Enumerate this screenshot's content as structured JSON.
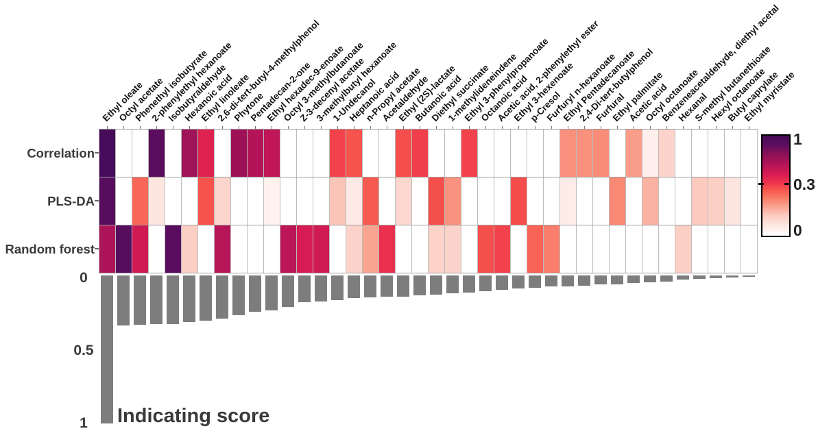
{
  "chart_data": {
    "type": "heatmap",
    "categories": [
      "Ethyl oleate",
      "Octyl acetate",
      "Phenethyl isobutyrate",
      "2-phenylethyl hexanoate",
      "Isobutyraldehyde",
      "Hexanoic acid",
      "Ethyl linoleate",
      "2,6-di-tert-butyl-4-methylphenol",
      "Phytone",
      "Pentadecan-2-one",
      "Ethyl hexadec-9-enoate",
      "Octyl 3-methylbutanoate",
      "Z-3-decenyl acetate",
      "3-methylbutyl hexanoate",
      "1-Undecanol",
      "Heptanoic acid",
      "n-Propyl acetate",
      "Acetaldehyde",
      "Ethyl (2S)-lactate",
      "Butanoic acid",
      "Diethyl succinate",
      "1-methylideneindene",
      "Ethyl 3-phenylpropanoate",
      "Octanoic acid",
      "Acetic acid, 2-phenylethyl ester",
      "Ethyl 3-hexenoate",
      "p-Cresol",
      "Furfuryl n-hexanoate",
      "Ethyl Pentadecanoate",
      "2,4-Di-tert-butylphenol",
      "Furfural",
      "Ethyl palmitate",
      "Acetic acid",
      "Octyl octanoate",
      "Benzeneacetaldehyde, diethyl acetal",
      "Hexanal",
      "S-methyl butanethioate",
      "Hexyl octanoate",
      "Butyl caprylate",
      "Ethyl myristate"
    ],
    "heatmap": {
      "rows": [
        "Correlation",
        "PLS-DA",
        "Random forest"
      ],
      "values": [
        [
          0.98,
          0,
          0,
          0.87,
          0,
          0.63,
          0.4,
          0,
          0.64,
          0.56,
          0.52,
          0,
          0,
          0,
          0.3,
          0.27,
          0,
          0,
          0.28,
          0.31,
          0,
          0,
          0.3,
          0,
          0,
          0,
          0,
          0,
          0.15,
          0.15,
          0.155,
          0,
          0.13,
          0.01,
          0.047,
          0,
          0,
          0,
          0,
          0
        ],
        [
          0.89,
          0,
          0.224,
          0.022,
          0,
          0,
          0.27,
          0.045,
          0,
          0,
          0.008,
          0,
          0,
          0,
          0.073,
          0.016,
          0.253,
          0,
          0.042,
          0,
          0.277,
          0.148,
          0,
          0,
          0,
          0.283,
          0,
          0,
          0.013,
          0,
          0,
          0.164,
          0,
          0.098,
          0,
          0,
          0.065,
          0.057,
          0.022,
          0
        ],
        [
          0.58,
          0.9,
          0.457,
          0,
          0.88,
          0.057,
          0,
          0.548,
          0,
          0,
          0,
          0.53,
          0.433,
          0.457,
          0,
          0.05,
          0.12,
          0.345,
          0,
          0,
          0.052,
          0.05,
          0,
          0.277,
          0.3,
          0,
          0.234,
          0.18,
          0,
          0,
          0,
          0,
          0,
          0,
          0,
          0.057,
          0,
          0,
          0,
          0
        ]
      ]
    },
    "bar": {
      "label": "Indicating score",
      "values": [
        1.0,
        0.34,
        0.335,
        0.33,
        0.33,
        0.315,
        0.305,
        0.29,
        0.27,
        0.245,
        0.235,
        0.215,
        0.18,
        0.175,
        0.165,
        0.152,
        0.147,
        0.142,
        0.142,
        0.135,
        0.128,
        0.122,
        0.117,
        0.108,
        0.098,
        0.09,
        0.082,
        0.075,
        0.072,
        0.068,
        0.062,
        0.058,
        0.052,
        0.046,
        0.04,
        0.028,
        0.022,
        0.02,
        0.012,
        0.008
      ],
      "yticks": [
        "0",
        "0.5",
        "1"
      ],
      "ymax": 1,
      "bar_color": "#7d7d7d"
    },
    "colorbar": {
      "tick_labels": [
        "1",
        "0.3",
        "0"
      ],
      "value_scale_power": 0.58,
      "gradient": [
        [
          0.0,
          "#ffffff"
        ],
        [
          0.1,
          "#fde8e3"
        ],
        [
          0.2,
          "#fcccc2"
        ],
        [
          0.3,
          "#f9a08d"
        ],
        [
          0.4,
          "#f9705c"
        ],
        [
          0.47,
          "#f6524c"
        ],
        [
          0.53,
          "#ee324e"
        ],
        [
          0.62,
          "#d61b53"
        ],
        [
          0.72,
          "#b11458"
        ],
        [
          0.82,
          "#8a1157"
        ],
        [
          0.9,
          "#600d60"
        ],
        [
          1.0,
          "#440c58"
        ]
      ]
    }
  }
}
